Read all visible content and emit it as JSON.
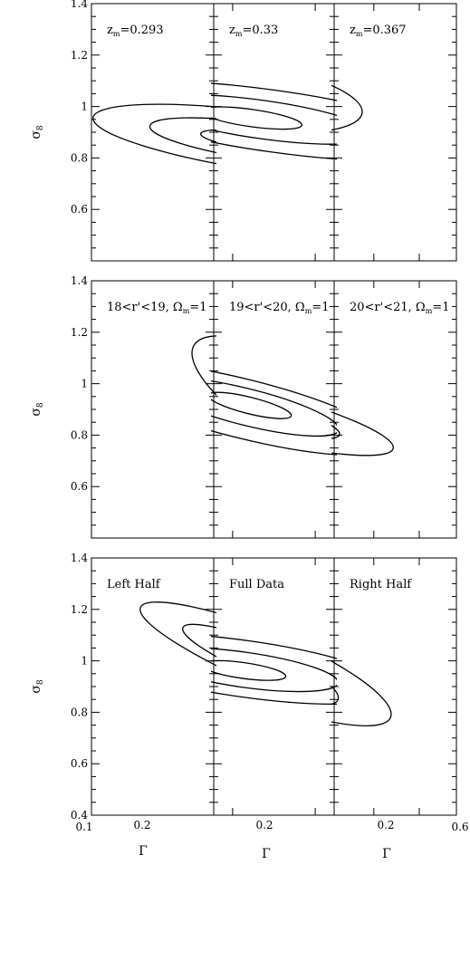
{
  "figure": {
    "rows": [
      {
        "ylabel_symbol": "σ",
        "ylabel_sub": "8",
        "yticks": [
          "1.4",
          "1.2",
          "1",
          "0.8",
          "0.6"
        ],
        "panels": [
          {
            "label_main": "z",
            "label_sub": "m",
            "label_rest": "=0.293"
          },
          {
            "label_main": "z",
            "label_sub": "m",
            "label_rest": "=0.33"
          },
          {
            "label_main": "z",
            "label_sub": "m",
            "label_rest": "=0.367"
          }
        ]
      },
      {
        "ylabel_symbol": "σ",
        "ylabel_sub": "8",
        "yticks": [
          "1.4",
          "1.2",
          "1",
          "0.8",
          "0.6"
        ],
        "panels": [
          {
            "label_main": "18<r'<19, Ω",
            "label_sub": "m",
            "label_rest": "=1"
          },
          {
            "label_main": "19<r'<20, Ω",
            "label_sub": "m",
            "label_rest": "=1"
          },
          {
            "label_main": "20<r'<21, Ω",
            "label_sub": "m",
            "label_rest": "=1"
          }
        ]
      },
      {
        "ylabel_symbol": "σ",
        "ylabel_sub": "8",
        "yticks": [
          "1.4",
          "1.2",
          "1",
          "0.8",
          "0.6",
          "0.4"
        ],
        "panels": [
          {
            "label_main": "Left Half",
            "label_sub": "",
            "label_rest": ""
          },
          {
            "label_main": "Full Data",
            "label_sub": "",
            "label_rest": ""
          },
          {
            "label_main": "Right Half",
            "label_sub": "",
            "label_rest": ""
          }
        ]
      }
    ],
    "xtick_labels": {
      "left": "0.1",
      "mid": "0.2",
      "right": "0.6"
    },
    "xlabel": "Γ"
  },
  "chart_data": {
    "type": "contour",
    "layout": "3x3 grid, shared axes",
    "x_axis": {
      "label": "Γ",
      "scale": "log",
      "range": [
        0.1,
        0.6
      ],
      "tick_labels": [
        0.1,
        0.2,
        0.6
      ]
    },
    "y_axis": {
      "label": "σ8",
      "scale": "linear",
      "range": [
        0.4,
        1.4
      ],
      "tick_labels": [
        0.4,
        0.6,
        0.8,
        1.0,
        1.2,
        1.4
      ]
    },
    "contour_levels": 3,
    "panels": [
      {
        "row": 0,
        "col": 0,
        "label": "z_m=0.293",
        "center": {
          "gamma": 0.21,
          "sigma8": 0.87
        },
        "outer_extent": {
          "gamma": [
            0.1,
            0.6
          ],
          "sigma8": [
            0.76,
            0.99
          ]
        }
      },
      {
        "row": 0,
        "col": 1,
        "label": "z_m=0.33",
        "center": {
          "gamma": 0.21,
          "sigma8": 0.96
        },
        "outer_extent": {
          "gamma": [
            0.1,
            0.6
          ],
          "sigma8": [
            0.84,
            1.08
          ]
        }
      },
      {
        "row": 0,
        "col": 2,
        "label": "z_m=0.367",
        "center": {
          "gamma": 0.22,
          "sigma8": 1.04
        },
        "outer_extent": {
          "gamma": [
            0.1,
            0.38
          ],
          "sigma8": [
            0.9,
            1.17
          ]
        }
      },
      {
        "row": 1,
        "col": 0,
        "label": "18<r'<19, Ω_m=1",
        "center": {
          "gamma": 0.27,
          "sigma8": 0.89
        },
        "outer_extent": {
          "gamma": [
            0.15,
            0.6
          ],
          "sigma8": [
            0.75,
            1.09
          ]
        }
      },
      {
        "row": 1,
        "col": 1,
        "label": "19<r'<20, Ω_m=1",
        "center": {
          "gamma": 0.22,
          "sigma8": 0.92
        },
        "outer_extent": {
          "gamma": [
            0.1,
            0.45
          ],
          "sigma8": [
            0.78,
            1.01
          ]
        }
      },
      {
        "row": 1,
        "col": 2,
        "label": "20<r'<21, Ω_m=1",
        "center": {
          "gamma": 0.22,
          "sigma8": 0.89
        },
        "outer_extent": {
          "gamma": [
            0.1,
            0.45
          ],
          "sigma8": [
            0.79,
            0.98
          ]
        }
      },
      {
        "row": 2,
        "col": 0,
        "label": "Left Half",
        "center": {
          "gamma": 0.22,
          "sigma8": 1.0
        },
        "outer_extent": {
          "gamma": [
            0.12,
            0.6
          ],
          "sigma8": [
            0.92,
            1.14
          ]
        }
      },
      {
        "row": 2,
        "col": 1,
        "label": "Full Data",
        "center": {
          "gamma": 0.21,
          "sigma8": 0.96
        },
        "outer_extent": {
          "gamma": [
            0.1,
            0.45
          ],
          "sigma8": [
            0.86,
            1.08
          ]
        }
      },
      {
        "row": 2,
        "col": 2,
        "label": "Right Half",
        "center": {
          "gamma": 0.22,
          "sigma8": 0.96
        },
        "outer_extent": {
          "gamma": [
            0.1,
            0.45
          ],
          "sigma8": [
            0.86,
            1.13
          ]
        }
      }
    ]
  }
}
